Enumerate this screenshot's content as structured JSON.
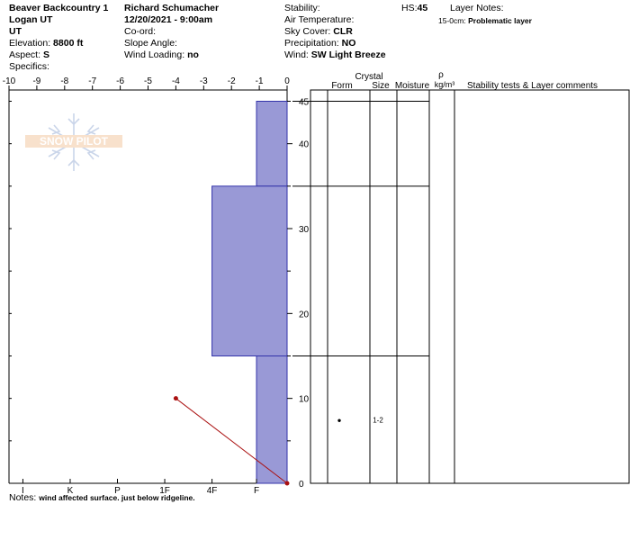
{
  "header": {
    "location": "Beaver Backcountry 1",
    "region": "Logan UT",
    "state": "UT",
    "elevation_label": "Elevation:",
    "elevation_value": "8800 ft",
    "aspect_label": "Aspect:",
    "aspect_value": "S",
    "specifics_label": "Specifics:",
    "observer": "Richard Schumacher",
    "datetime": "12/20/2021 - 9:00am",
    "coord_label": "Co-ord:",
    "slope_label": "Slope Angle:",
    "wind_loading_label": "Wind Loading:",
    "wind_loading_value": "no",
    "stability_label": "Stability:",
    "air_temp_label": "Air Temperature:",
    "sky_label": "Sky Cover:",
    "sky_value": "CLR",
    "precip_label": "Precipitation:",
    "precip_value": "NO",
    "wind_label": "Wind:",
    "wind_value": "SW Light Breeze",
    "hs_label": "HS:",
    "hs_value": "45",
    "layer_notes_label": "Layer Notes:",
    "layer_note_range": "15-0cm:",
    "layer_note_text": "Problematic layer"
  },
  "table_headers": {
    "crystal": "Crystal",
    "form": "Form",
    "size": "Size",
    "moisture": "Moisture",
    "rho": "ρ",
    "density_unit": "kg/m³",
    "comments": "Stability tests & Layer comments"
  },
  "notes": {
    "label": "Notes:",
    "text": "wind affected surface. just below ridgeline."
  },
  "logo_text": "SNOW PILOT",
  "colors": {
    "layer_fill": "#9999d6",
    "layer_stroke": "#3333aa",
    "temp_line": "#aa1111"
  },
  "chart_data": {
    "type": "snow-profile",
    "temp_axis": {
      "ticks": [
        -10,
        -9,
        -8,
        -7,
        -6,
        -5,
        -4,
        -3,
        -2,
        -1,
        0
      ],
      "range": [
        -10,
        0
      ]
    },
    "depth_axis": {
      "ticks": [
        0,
        10,
        20,
        30,
        40,
        45
      ],
      "range": [
        0,
        45
      ]
    },
    "hardness_axis": {
      "labels": [
        "I",
        "K",
        "P",
        "1F",
        "4F",
        "F"
      ]
    },
    "layers": [
      {
        "top": 45,
        "bottom": 35,
        "temp_extent": -1.1,
        "hardness": "F"
      },
      {
        "top": 35,
        "bottom": 15,
        "temp_extent": -2.7,
        "hardness": "4F"
      },
      {
        "top": 15,
        "bottom": 0,
        "temp_extent": -1.1,
        "hardness": "F"
      }
    ],
    "temperature_profile": [
      {
        "depth": 10,
        "temp": -4.0
      },
      {
        "depth": 0,
        "temp": 0
      }
    ],
    "crystals": [
      {
        "depth": 7.5,
        "symbol": "●",
        "size": "1-2"
      }
    ]
  }
}
